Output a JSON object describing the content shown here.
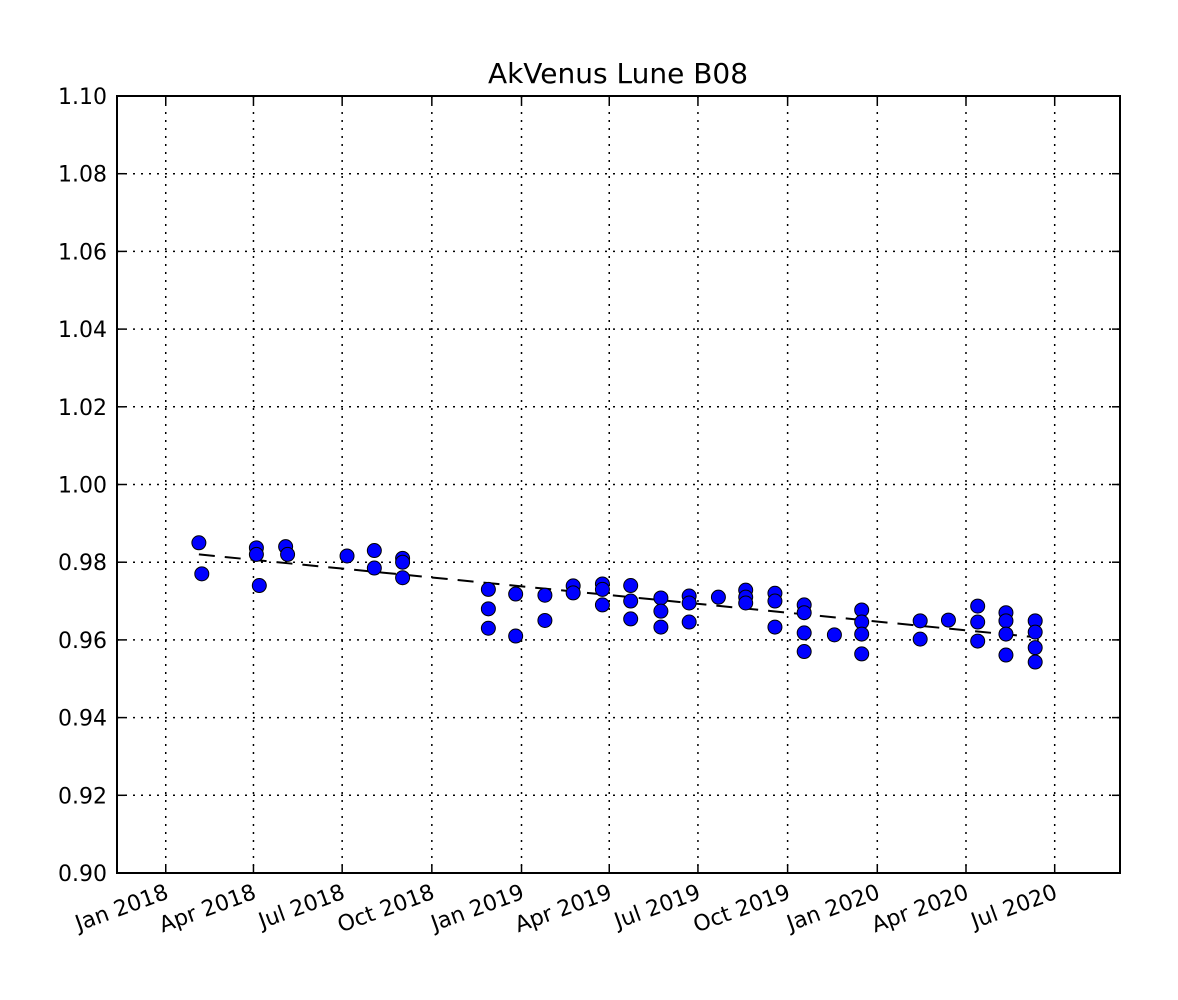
{
  "chart_data": {
    "type": "scatter",
    "title": "AkVenus Lune B08",
    "xlabel": "",
    "ylabel": "",
    "ylim": [
      0.9,
      1.1
    ],
    "xlim": [
      "2017-11-12",
      "2020-09-06"
    ],
    "grid": true,
    "yticks": [
      "0.90",
      "0.92",
      "0.94",
      "0.96",
      "0.98",
      "1.00",
      "1.02",
      "1.04",
      "1.06",
      "1.08",
      "1.10"
    ],
    "xticks": [
      {
        "date": "2018-01-01",
        "label": "Jan 2018"
      },
      {
        "date": "2018-04-01",
        "label": "Apr 2018"
      },
      {
        "date": "2018-07-01",
        "label": "Jul 2018"
      },
      {
        "date": "2018-10-01",
        "label": "Oct 2018"
      },
      {
        "date": "2019-01-01",
        "label": "Jan 2019"
      },
      {
        "date": "2019-04-01",
        "label": "Apr 2019"
      },
      {
        "date": "2019-07-01",
        "label": "Jul 2019"
      },
      {
        "date": "2019-10-01",
        "label": "Oct 2019"
      },
      {
        "date": "2020-01-01",
        "label": "Jan 2020"
      },
      {
        "date": "2020-04-01",
        "label": "Apr 2020"
      },
      {
        "date": "2020-07-01",
        "label": "Jul 2020"
      }
    ],
    "marker_color": "#0000ff",
    "points": [
      {
        "date": "2018-02-04",
        "y": [
          0.985
        ]
      },
      {
        "date": "2018-02-07",
        "y": [
          0.977
        ]
      },
      {
        "date": "2018-04-04",
        "y": [
          0.9837,
          0.982
        ]
      },
      {
        "date": "2018-04-07",
        "y": [
          0.974
        ]
      },
      {
        "date": "2018-05-04",
        "y": [
          0.984
        ]
      },
      {
        "date": "2018-05-06",
        "y": [
          0.982
        ]
      },
      {
        "date": "2018-07-06",
        "y": [
          0.9816
        ]
      },
      {
        "date": "2018-08-03",
        "y": [
          0.983,
          0.9785
        ]
      },
      {
        "date": "2018-09-01",
        "y": [
          0.981,
          0.98,
          0.976
        ]
      },
      {
        "date": "2018-11-28",
        "y": [
          0.973,
          0.968,
          0.963
        ]
      },
      {
        "date": "2018-12-26",
        "y": [
          0.9718,
          0.961
        ]
      },
      {
        "date": "2019-01-25",
        "y": [
          0.9715,
          0.965
        ]
      },
      {
        "date": "2019-02-23",
        "y": [
          0.9739,
          0.9721
        ]
      },
      {
        "date": "2019-03-25",
        "y": [
          0.9744,
          0.973,
          0.969
        ]
      },
      {
        "date": "2019-04-23",
        "y": [
          0.974,
          0.97,
          0.9654
        ]
      },
      {
        "date": "2019-05-24",
        "y": [
          0.9708,
          0.9674,
          0.9633
        ]
      },
      {
        "date": "2019-06-22",
        "y": [
          0.9713,
          0.9695,
          0.9646
        ]
      },
      {
        "date": "2019-07-22",
        "y": [
          0.971
        ]
      },
      {
        "date": "2019-08-19",
        "y": [
          0.9728,
          0.971,
          0.9695
        ]
      },
      {
        "date": "2019-09-18",
        "y": [
          0.972,
          0.97,
          0.9633
        ]
      },
      {
        "date": "2019-10-18",
        "y": [
          0.969,
          0.967,
          0.9618,
          0.957
        ]
      },
      {
        "date": "2019-11-18",
        "y": [
          0.9613
        ]
      },
      {
        "date": "2019-12-16",
        "y": [
          0.9677,
          0.9646,
          0.9615,
          0.9564
        ]
      },
      {
        "date": "2020-02-14",
        "y": [
          0.9649,
          0.9602
        ]
      },
      {
        "date": "2020-03-14",
        "y": [
          0.9651
        ]
      },
      {
        "date": "2020-04-13",
        "y": [
          0.9687,
          0.9646,
          0.9597
        ]
      },
      {
        "date": "2020-05-12",
        "y": [
          0.967,
          0.9649,
          0.9615,
          0.9561
        ]
      },
      {
        "date": "2020-06-11",
        "y": [
          0.9649,
          0.962,
          0.958,
          0.9543
        ]
      }
    ],
    "trend_line": {
      "style": "dashed",
      "color": "#000000",
      "start": {
        "date": "2018-02-04",
        "y": 0.982
      },
      "end": {
        "date": "2020-06-11",
        "y": 0.9607
      }
    }
  }
}
